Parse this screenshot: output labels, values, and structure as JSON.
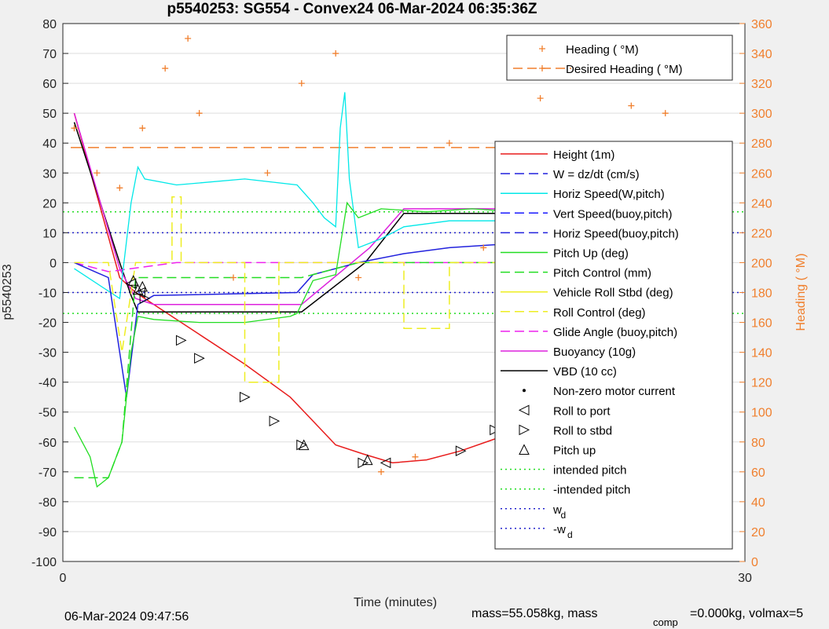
{
  "chart_data": {
    "type": "line",
    "title": "p5540253: SG554 - Convex24 06-Mar-2024 06:35:36Z",
    "xlabel": "Time (minutes)",
    "ylabel": "p5540253",
    "y2label": "Heading (  °M)",
    "xlim": [
      0,
      30
    ],
    "ylim": [
      -100,
      80
    ],
    "y2lim": [
      0,
      360
    ],
    "x_ticks": [
      "0",
      "30"
    ],
    "y_ticks": [
      "80",
      "70",
      "60",
      "50",
      "40",
      "30",
      "20",
      "10",
      "0",
      "-10",
      "-20",
      "-30",
      "-40",
      "-50",
      "-60",
      "-70",
      "-80",
      "-90",
      "-100"
    ],
    "y2_ticks": [
      "360",
      "340",
      "320",
      "300",
      "280",
      "260",
      "240",
      "220",
      "200",
      "180",
      "160",
      "140",
      "120",
      "100",
      "80",
      "60",
      "40",
      "20",
      "0"
    ],
    "grid": true,
    "colors": {
      "heading": "#f07f2d",
      "height": "#e81c1c",
      "w": "#2222dd",
      "horiz": "#00e8e8",
      "vert_buoy": "#1a1aff",
      "pitch": "#22dd22",
      "roll": "#eeee22",
      "glide": "#ee22ee",
      "buoy": "#dd22dd",
      "vbd": "#000000",
      "intended": "#22dd22",
      "wd": "#2222cc"
    },
    "legend_top": [
      "Heading (  °M)",
      "Desired Heading (    °M)"
    ],
    "legend_main": [
      "Height (1m)",
      "W = dz/dt (cm/s)",
      "Horiz Speed(W,pitch)",
      "Vert Speed(buoy,pitch)",
      "Horiz Speed(buoy,pitch)",
      "Pitch Up (deg)",
      "Pitch Control (mm)",
      "Vehicle Roll Stbd (deg)",
      "Roll Control (deg)",
      "Glide Angle (buoy,pitch)",
      "Buoyancy (10g)",
      "VBD (10 cc)",
      "Non-zero motor current",
      "Roll to port",
      "Roll to stbd",
      "Pitch up",
      "intended pitch",
      "-intended pitch",
      "w",
      "-w"
    ],
    "legend_subscript": "d",
    "series": [
      {
        "name": "Height (1m)",
        "x": [
          0.5,
          2.5,
          3.2,
          4.0,
          6.0,
          8.0,
          10.0,
          11.0,
          12.0,
          13.2,
          14.5,
          16.0,
          17.5,
          19.0,
          21.0,
          23.0,
          24.5,
          25.5,
          26.5,
          27.0
        ],
        "y": [
          50,
          -5,
          -10,
          -14,
          -24,
          -34,
          -45,
          -53,
          -61,
          -64,
          -67,
          -66,
          -63,
          -59,
          -52,
          -43,
          -33,
          -22,
          -8,
          0
        ]
      },
      {
        "name": "VBD (10 cc)",
        "x": [
          0.5,
          2.5,
          3.0,
          3.3,
          10.5,
          13.3,
          15.0,
          17.0,
          18.0,
          21.0,
          22.0,
          24.5,
          25.0,
          27.0
        ],
        "y": [
          47,
          0,
          -11,
          -16.5,
          -16.5,
          0,
          16.5,
          16.5,
          16.5,
          16.5,
          26,
          26,
          29,
          29
        ]
      },
      {
        "name": "Buoyancy (10g)",
        "x": [
          0.5,
          2.5,
          3.2,
          4.0,
          10.5,
          13.5,
          15.0,
          17.0,
          18.0,
          21.0,
          22.0,
          24.0,
          25.0,
          26.5
        ],
        "y": [
          50,
          -2,
          -12,
          -14,
          -14,
          5,
          18,
          18,
          18,
          18,
          29,
          29,
          32,
          32
        ]
      },
      {
        "name": "Glide Angle (buoy,pitch)",
        "x": [
          0.5,
          2.0,
          3.0,
          5.0,
          10.0,
          10.5,
          26.5
        ],
        "y": [
          0,
          -3,
          -2,
          0,
          0,
          0,
          0
        ]
      },
      {
        "name": "Horiz Speed(W,pitch)",
        "x": [
          0.5,
          2.5,
          3.0,
          3.3,
          3.6,
          5.0,
          8.0,
          10.3,
          11.0,
          11.5,
          12.0,
          12.2,
          12.4,
          12.6,
          13.0,
          14.0,
          15.0,
          17.0,
          19.0,
          21.0,
          23.0,
          25.0,
          26.5
        ],
        "y": [
          -2,
          -12,
          20,
          32,
          28,
          26,
          28,
          26,
          20,
          15,
          12,
          45,
          57,
          28,
          5,
          8,
          12,
          14,
          14,
          16,
          16,
          18,
          20
        ]
      },
      {
        "name": "Horiz Speed(buoy,pitch) / W",
        "x": [
          0.5,
          2.0,
          2.8,
          3.3,
          4.0,
          10.3,
          11.0,
          13.0,
          15.0,
          17.0,
          19.0,
          21.0,
          23.0,
          25.0,
          26.5
        ],
        "y": [
          0,
          -5,
          -45,
          -14,
          -11,
          -10,
          -4,
          0,
          3,
          5,
          6,
          8,
          9,
          10,
          10
        ]
      },
      {
        "name": "Pitch Up (deg)",
        "x": [
          0.5,
          1.2,
          1.5,
          2.0,
          2.6,
          3.0,
          3.3,
          4.0,
          6.0,
          8.0,
          10.0,
          10.3,
          11.0,
          12.0,
          12.5,
          13.0,
          14.0,
          16.0,
          18.0,
          20.0,
          22.0,
          24.0,
          26.0,
          26.5
        ],
        "y": [
          -55,
          -65,
          -75,
          -72,
          -60,
          -30,
          -18,
          -19,
          -20,
          -20,
          -18,
          -17,
          -6,
          -4,
          20,
          15,
          18,
          17,
          18,
          17,
          18,
          17,
          16,
          15
        ]
      },
      {
        "name": "Pitch Control (mm)",
        "x": [
          0.5,
          2.0,
          2.6,
          3.2,
          10.5,
          13.0,
          26.5
        ],
        "y": [
          -72,
          -72,
          -60,
          -5,
          -5,
          0,
          0
        ]
      },
      {
        "name": "Roll Control (deg)",
        "x": [
          0.5,
          2.0,
          2.6,
          3.2,
          4.8,
          4.8,
          5.2,
          5.2,
          8.0,
          8.0,
          9.5,
          9.5,
          10.5,
          12.5,
          15.0,
          15.0,
          17.0,
          17.0,
          20.0,
          20.0,
          26.0,
          26.5
        ],
        "y": [
          0,
          0,
          -30,
          0,
          0,
          22,
          22,
          0,
          0,
          -40,
          -40,
          0,
          0,
          0,
          0,
          -22,
          -22,
          0,
          0,
          0,
          0,
          0
        ]
      },
      {
        "name": "Heading (  °M)",
        "x": [
          0.5,
          1.5,
          2.5,
          3.5,
          4.5,
          5.5,
          6.0,
          7.5,
          9.0,
          10.5,
          12.0,
          13.0,
          14.0,
          15.5,
          17.0,
          18.5,
          20.0,
          21.0,
          22.0,
          23.5,
          25.0,
          26.5
        ],
        "y": [
          290,
          260,
          250,
          290,
          330,
          350,
          300,
          190,
          260,
          320,
          340,
          190,
          60,
          70,
          280,
          210,
          255,
          310,
          180,
          260,
          305,
          300
        ]
      }
    ],
    "desired_heading": 277,
    "reference_lines": {
      "intended_pitch": 17,
      "neg_intended_pitch": -17,
      "w_d": 10,
      "neg_w_d": -10
    },
    "markers": {
      "roll_to_port": [
        [
          3.0,
          -7
        ],
        [
          3.4,
          -10
        ],
        [
          14.2,
          -67
        ],
        [
          21.2,
          -43
        ],
        [
          22.2,
          -37
        ]
      ],
      "roll_to_stbd": [
        [
          3.6,
          -12
        ],
        [
          5.2,
          -26
        ],
        [
          6.0,
          -32
        ],
        [
          8.0,
          -45
        ],
        [
          9.3,
          -53
        ],
        [
          10.5,
          -61
        ],
        [
          13.2,
          -67
        ],
        [
          17.5,
          -63
        ],
        [
          19.0,
          -56
        ],
        [
          24.0,
          -38
        ],
        [
          25.0,
          -30
        ],
        [
          26.0,
          -15
        ],
        [
          27.0,
          0
        ]
      ],
      "pitch_up": [
        [
          3.1,
          -6
        ],
        [
          3.3,
          -9
        ],
        [
          3.5,
          -8
        ],
        [
          10.6,
          -61
        ],
        [
          13.4,
          -66
        ]
      ]
    }
  },
  "footer": {
    "timestamp": "06-Mar-2024 09:47:56",
    "mass_text": "mass=55.058kg, mass",
    "comp_sub": "comp",
    "mass2_text": "=0.000kg, volmax=5"
  }
}
